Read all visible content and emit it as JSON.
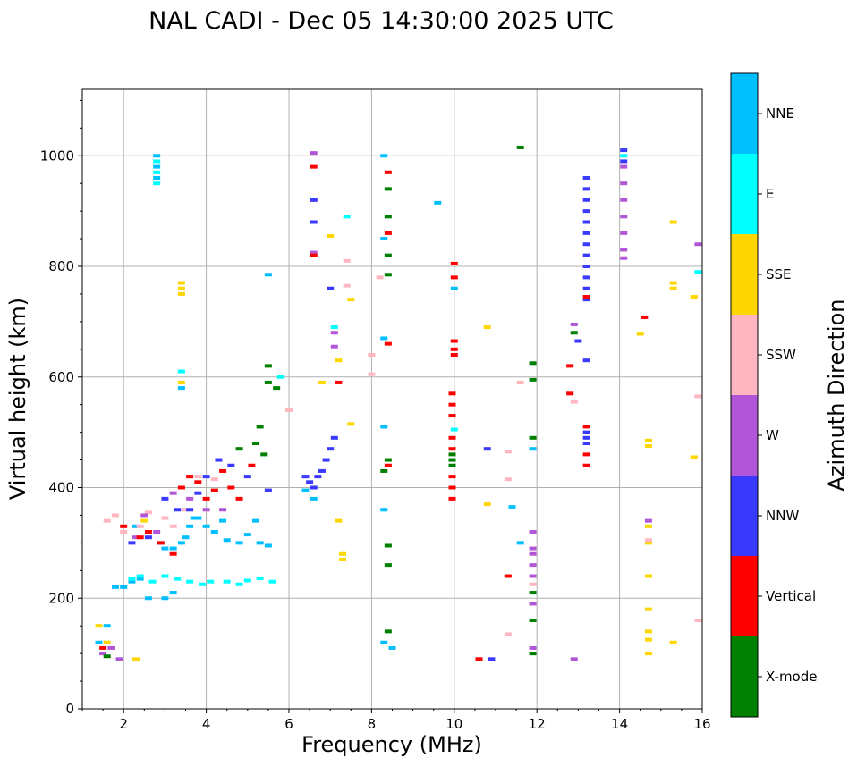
{
  "chart_data": {
    "type": "scatter",
    "title": "NAL CADI - Dec 05 14:30:00 2025 UTC",
    "xlabel": "Frequency (MHz)",
    "ylabel": "Virtual height (km)",
    "xlim": [
      1,
      16
    ],
    "ylim": [
      0,
      1120
    ],
    "xticks": [
      2,
      4,
      6,
      8,
      10,
      12,
      14,
      16
    ],
    "yticks": [
      0,
      200,
      400,
      600,
      800,
      1000
    ],
    "grid": true,
    "colorbar": {
      "label": "Azimuth Direction",
      "categories": [
        "X-mode",
        "Vertical",
        "NNW",
        "W",
        "SSW",
        "SSE",
        "E",
        "NNE"
      ],
      "colors": {
        "X-mode": "#008000",
        "Vertical": "#ff0000",
        "NNW": "#3a3aff",
        "W": "#b256d8",
        "SSW": "#ffb6c1",
        "SSE": "#ffd700",
        "E": "#00ffff",
        "NNE": "#00bfff"
      }
    },
    "series": [
      {
        "name": "NNE",
        "points": [
          [
            1.4,
            120
          ],
          [
            1.6,
            150
          ],
          [
            1.8,
            220
          ],
          [
            2.0,
            220
          ],
          [
            2.2,
            230
          ],
          [
            2.4,
            235
          ],
          [
            2.6,
            200
          ],
          [
            2.8,
            1000
          ],
          [
            2.8,
            980
          ],
          [
            2.8,
            960
          ],
          [
            2.9,
            300
          ],
          [
            3.0,
            290
          ],
          [
            3.2,
            290
          ],
          [
            3.4,
            300
          ],
          [
            3.5,
            310
          ],
          [
            3.6,
            330
          ],
          [
            3.8,
            345
          ],
          [
            4.0,
            330
          ],
          [
            4.2,
            320
          ],
          [
            4.5,
            305
          ],
          [
            4.8,
            300
          ],
          [
            5.0,
            315
          ],
          [
            5.3,
            300
          ],
          [
            5.5,
            295
          ],
          [
            5.5,
            785
          ],
          [
            3.4,
            580
          ],
          [
            6.4,
            395
          ],
          [
            6.6,
            380
          ],
          [
            8.3,
            1000
          ],
          [
            8.3,
            850
          ],
          [
            8.3,
            670
          ],
          [
            8.3,
            510
          ],
          [
            8.3,
            360
          ],
          [
            8.3,
            120
          ],
          [
            8.5,
            110
          ],
          [
            9.6,
            915
          ],
          [
            10.0,
            760
          ],
          [
            11.4,
            365
          ],
          [
            11.6,
            300
          ],
          [
            11.9,
            470
          ],
          [
            3.0,
            200
          ],
          [
            3.2,
            210
          ],
          [
            3.7,
            345
          ],
          [
            4.4,
            340
          ],
          [
            5.2,
            340
          ],
          [
            2.3,
            330
          ]
        ]
      },
      {
        "name": "E",
        "points": [
          [
            2.2,
            235
          ],
          [
            2.4,
            240
          ],
          [
            2.7,
            230
          ],
          [
            3.0,
            240
          ],
          [
            3.3,
            235
          ],
          [
            3.6,
            230
          ],
          [
            3.9,
            225
          ],
          [
            4.1,
            230
          ],
          [
            4.5,
            230
          ],
          [
            4.8,
            225
          ],
          [
            5.0,
            232
          ],
          [
            5.3,
            236
          ],
          [
            5.6,
            230
          ],
          [
            2.8,
            990
          ],
          [
            2.8,
            970
          ],
          [
            2.8,
            950
          ],
          [
            3.4,
            610
          ],
          [
            10.0,
            505
          ],
          [
            14.1,
            1000
          ],
          [
            15.9,
            790
          ],
          [
            7.1,
            690
          ],
          [
            7.4,
            890
          ],
          [
            5.8,
            600
          ]
        ]
      },
      {
        "name": "SSE",
        "points": [
          [
            1.4,
            150
          ],
          [
            1.6,
            120
          ],
          [
            2.3,
            90
          ],
          [
            2.5,
            340
          ],
          [
            3.4,
            770
          ],
          [
            3.4,
            760
          ],
          [
            3.4,
            750
          ],
          [
            3.4,
            590
          ],
          [
            6.8,
            590
          ],
          [
            7.0,
            855
          ],
          [
            7.2,
            630
          ],
          [
            7.2,
            340
          ],
          [
            7.3,
            280
          ],
          [
            7.3,
            270
          ],
          [
            7.5,
            740
          ],
          [
            7.5,
            515
          ],
          [
            10.8,
            690
          ],
          [
            10.8,
            370
          ],
          [
            14.5,
            678
          ],
          [
            14.7,
            485
          ],
          [
            14.7,
            475
          ],
          [
            14.7,
            330
          ],
          [
            14.7,
            300
          ],
          [
            14.7,
            240
          ],
          [
            14.7,
            180
          ],
          [
            14.7,
            140
          ],
          [
            14.7,
            125
          ],
          [
            14.7,
            100
          ],
          [
            15.3,
            880
          ],
          [
            15.3,
            770
          ],
          [
            15.3,
            760
          ],
          [
            15.3,
            120
          ],
          [
            15.8,
            745
          ],
          [
            15.8,
            455
          ]
        ]
      },
      {
        "name": "SSW",
        "points": [
          [
            1.6,
            340
          ],
          [
            1.8,
            350
          ],
          [
            2.0,
            320
          ],
          [
            2.4,
            330
          ],
          [
            2.6,
            355
          ],
          [
            3.0,
            345
          ],
          [
            3.2,
            330
          ],
          [
            3.5,
            360
          ],
          [
            3.8,
            420
          ],
          [
            4.2,
            415
          ],
          [
            6.0,
            540
          ],
          [
            7.4,
            810
          ],
          [
            7.4,
            765
          ],
          [
            8.0,
            640
          ],
          [
            8.0,
            605
          ],
          [
            8.2,
            780
          ],
          [
            11.3,
            465
          ],
          [
            11.3,
            415
          ],
          [
            11.3,
            135
          ],
          [
            11.6,
            590
          ],
          [
            11.9,
            225
          ],
          [
            12.9,
            555
          ],
          [
            14.7,
            305
          ],
          [
            15.9,
            565
          ],
          [
            15.9,
            160
          ]
        ]
      },
      {
        "name": "W",
        "points": [
          [
            1.5,
            100
          ],
          [
            1.7,
            110
          ],
          [
            1.9,
            90
          ],
          [
            2.3,
            310
          ],
          [
            2.5,
            350
          ],
          [
            2.8,
            320
          ],
          [
            3.2,
            390
          ],
          [
            3.6,
            380
          ],
          [
            4.0,
            360
          ],
          [
            4.4,
            360
          ],
          [
            6.6,
            1005
          ],
          [
            6.6,
            920
          ],
          [
            6.6,
            825
          ],
          [
            7.1,
            680
          ],
          [
            7.1,
            655
          ],
          [
            11.9,
            320
          ],
          [
            11.9,
            290
          ],
          [
            11.9,
            280
          ],
          [
            11.9,
            260
          ],
          [
            11.9,
            240
          ],
          [
            11.9,
            190
          ],
          [
            11.9,
            110
          ],
          [
            12.9,
            695
          ],
          [
            12.9,
            90
          ],
          [
            14.1,
            980
          ],
          [
            14.1,
            950
          ],
          [
            14.1,
            920
          ],
          [
            14.1,
            890
          ],
          [
            14.1,
            860
          ],
          [
            14.1,
            830
          ],
          [
            14.1,
            815
          ],
          [
            14.7,
            340
          ],
          [
            15.9,
            840
          ],
          [
            13.2,
            800
          ]
        ]
      },
      {
        "name": "NNW",
        "points": [
          [
            2.2,
            300
          ],
          [
            2.6,
            310
          ],
          [
            3.0,
            380
          ],
          [
            3.3,
            360
          ],
          [
            3.6,
            360
          ],
          [
            3.8,
            390
          ],
          [
            4.0,
            420
          ],
          [
            4.3,
            450
          ],
          [
            4.6,
            440
          ],
          [
            5.0,
            420
          ],
          [
            5.5,
            395
          ],
          [
            6.4,
            420
          ],
          [
            6.5,
            410
          ],
          [
            6.6,
            400
          ],
          [
            6.7,
            420
          ],
          [
            6.8,
            430
          ],
          [
            6.9,
            450
          ],
          [
            7.0,
            470
          ],
          [
            7.1,
            490
          ],
          [
            6.6,
            880
          ],
          [
            6.6,
            920
          ],
          [
            7.0,
            760
          ],
          [
            10.8,
            470
          ],
          [
            10.9,
            90
          ],
          [
            13.2,
            960
          ],
          [
            13.2,
            940
          ],
          [
            13.2,
            920
          ],
          [
            13.2,
            900
          ],
          [
            13.2,
            880
          ],
          [
            13.2,
            860
          ],
          [
            13.2,
            840
          ],
          [
            13.2,
            820
          ],
          [
            13.2,
            800
          ],
          [
            13.2,
            780
          ],
          [
            13.2,
            760
          ],
          [
            13.2,
            740
          ],
          [
            13.2,
            630
          ],
          [
            13.2,
            500
          ],
          [
            13.2,
            490
          ],
          [
            13.2,
            480
          ],
          [
            14.1,
            1010
          ],
          [
            14.1,
            990
          ],
          [
            13.0,
            665
          ]
        ]
      },
      {
        "name": "Vertical",
        "points": [
          [
            1.5,
            110
          ],
          [
            2.0,
            330
          ],
          [
            2.4,
            310
          ],
          [
            2.6,
            320
          ],
          [
            2.9,
            300
          ],
          [
            3.2,
            280
          ],
          [
            3.4,
            400
          ],
          [
            3.6,
            420
          ],
          [
            3.8,
            410
          ],
          [
            4.0,
            380
          ],
          [
            4.2,
            395
          ],
          [
            4.4,
            430
          ],
          [
            4.6,
            400
          ],
          [
            4.8,
            380
          ],
          [
            5.1,
            440
          ],
          [
            6.6,
            980
          ],
          [
            6.6,
            820
          ],
          [
            7.2,
            590
          ],
          [
            8.4,
            970
          ],
          [
            8.4,
            860
          ],
          [
            8.4,
            660
          ],
          [
            8.4,
            440
          ],
          [
            10.0,
            805
          ],
          [
            10.0,
            780
          ],
          [
            10.0,
            665
          ],
          [
            10.0,
            650
          ],
          [
            10.0,
            640
          ],
          [
            9.95,
            570
          ],
          [
            9.95,
            550
          ],
          [
            9.95,
            530
          ],
          [
            9.95,
            490
          ],
          [
            9.95,
            470
          ],
          [
            9.95,
            420
          ],
          [
            9.95,
            400
          ],
          [
            9.95,
            380
          ],
          [
            10.6,
            90
          ],
          [
            11.3,
            240
          ],
          [
            12.8,
            620
          ],
          [
            12.8,
            570
          ],
          [
            13.2,
            510
          ],
          [
            13.2,
            460
          ],
          [
            13.2,
            440
          ],
          [
            14.6,
            708
          ],
          [
            13.2,
            745
          ]
        ]
      },
      {
        "name": "X-mode",
        "points": [
          [
            1.6,
            95
          ],
          [
            4.8,
            470
          ],
          [
            5.2,
            480
          ],
          [
            5.3,
            510
          ],
          [
            5.4,
            460
          ],
          [
            5.5,
            620
          ],
          [
            5.5,
            590
          ],
          [
            5.7,
            580
          ],
          [
            8.4,
            940
          ],
          [
            8.4,
            890
          ],
          [
            8.4,
            820
          ],
          [
            8.4,
            785
          ],
          [
            8.3,
            430
          ],
          [
            8.4,
            450
          ],
          [
            8.4,
            295
          ],
          [
            8.4,
            260
          ],
          [
            8.4,
            140
          ],
          [
            9.95,
            460
          ],
          [
            9.95,
            440
          ],
          [
            9.95,
            450
          ],
          [
            11.6,
            1015
          ],
          [
            11.9,
            625
          ],
          [
            11.9,
            595
          ],
          [
            11.9,
            490
          ],
          [
            11.9,
            210
          ],
          [
            11.9,
            160
          ],
          [
            11.9,
            100
          ],
          [
            12.9,
            680
          ]
        ]
      }
    ]
  }
}
